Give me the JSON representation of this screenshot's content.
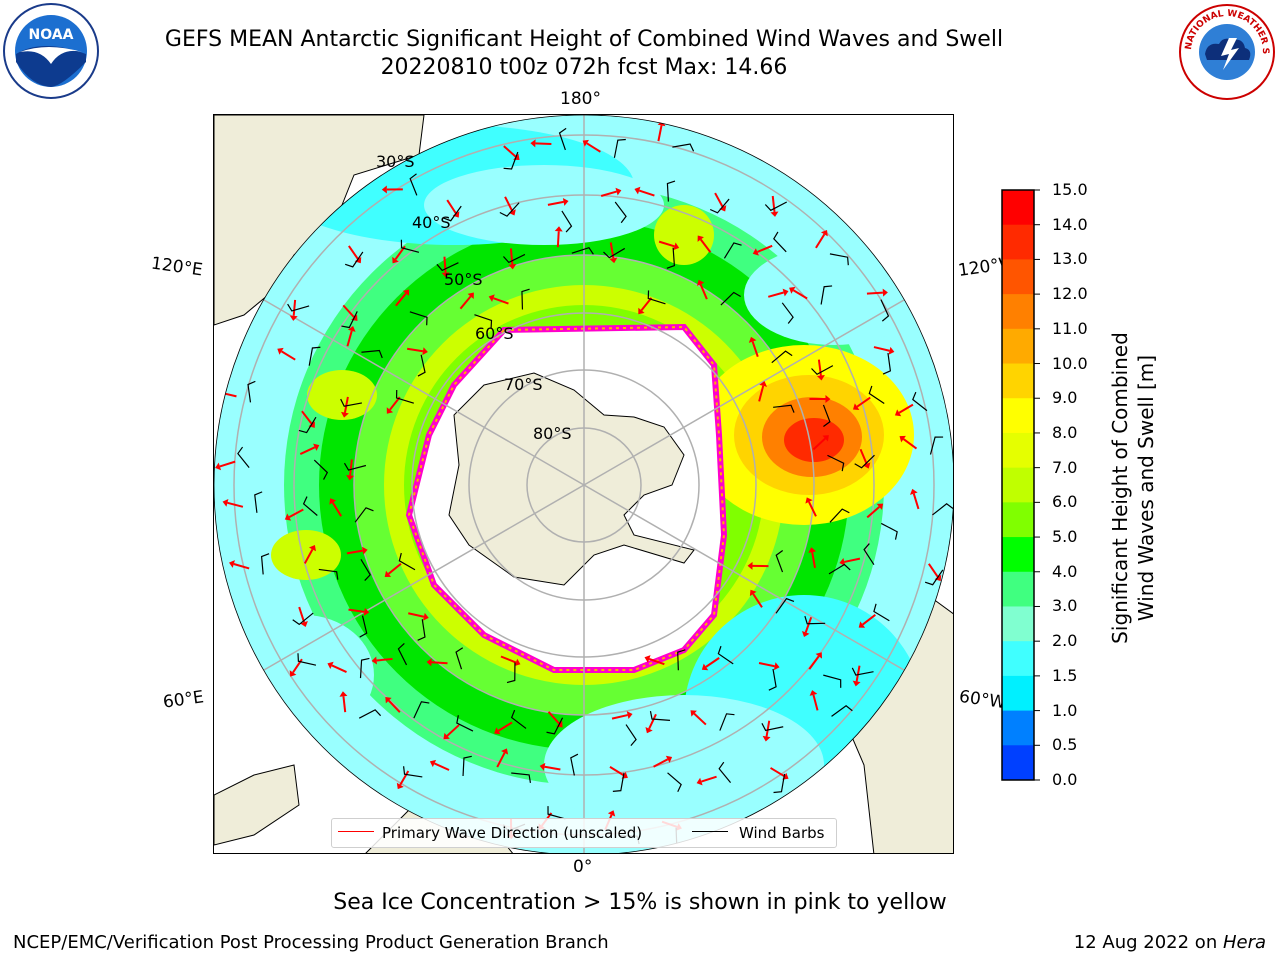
{
  "header": {
    "title_line1": "GEFS MEAN Antarctic Significant Height of Combined Wind Waves and Swell",
    "title_line2": "20220810 t00z 072h fcst   Max: 14.66"
  },
  "logos": {
    "left": {
      "name": "noaa-logo",
      "text": "NOAA"
    },
    "right": {
      "name": "nws-logo",
      "text": "NATIONAL WEATHER SERVICE"
    }
  },
  "map": {
    "longitude_labels": [
      "180°",
      "120°E",
      "120°W",
      "60°E",
      "60°W",
      "0°"
    ],
    "latitude_labels": [
      "30°S",
      "40°S",
      "50°S",
      "60°S",
      "70°S",
      "80°S"
    ],
    "colors": {
      "land": "#efedd9",
      "ice_edge": "#ff00cc",
      "ice_edge2": "#ffb000",
      "wave_arrow": "#ff0000",
      "wind_barb": "#000000"
    }
  },
  "legend": {
    "wave_label": "Primary Wave Direction (unscaled)",
    "barb_label": "Wind Barbs"
  },
  "colorbar": {
    "title_line1": "Significant Height of Combined",
    "title_line2": "Wind Waves and Swell [m]",
    "ticks": [
      "15.0",
      "14.0",
      "13.0",
      "12.0",
      "11.0",
      "10.0",
      "9.0",
      "8.0",
      "7.0",
      "6.0",
      "5.0",
      "4.0",
      "3.0",
      "2.0",
      "1.5",
      "1.0",
      "0.5",
      "0.0"
    ],
    "colors": [
      "#ff0000",
      "#ff2a00",
      "#ff5500",
      "#ff8000",
      "#ffaa00",
      "#ffd400",
      "#ffff00",
      "#e5ff00",
      "#c0ff00",
      "#80ff00",
      "#00ff00",
      "#40ff80",
      "#80ffd0",
      "#40ffff",
      "#00f0ff",
      "#0080ff",
      "#0040ff",
      "#0000ff"
    ]
  },
  "footer": {
    "note": "Sea Ice Concentration > 15% is shown in pink to yellow",
    "left": "NCEP/EMC/Verification Post Processing Product Generation Branch",
    "right_date": "12 Aug 2022 on ",
    "right_host": "Hera"
  }
}
